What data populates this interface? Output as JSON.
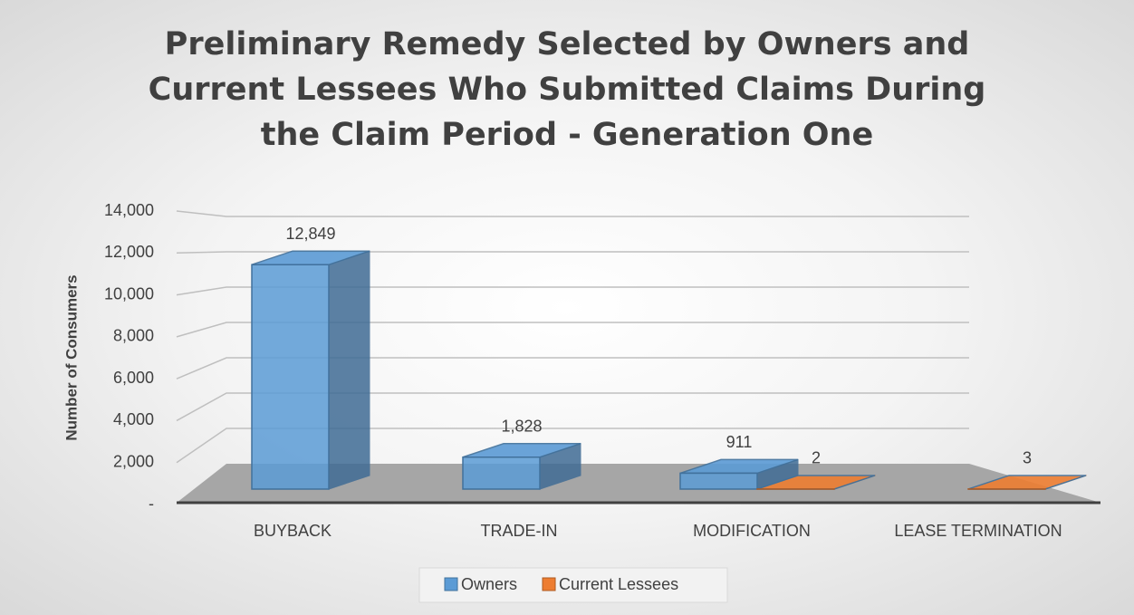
{
  "chart_data": {
    "type": "bar3d",
    "title": "Preliminary Remedy Selected by Owners and Current Lessees Who Submitted Claims During the Claim Period - Generation One",
    "y_label": "Number of Consumers",
    "categories": [
      "BUYBACK",
      "TRADE-IN",
      "MODIFICATION",
      "LEASE TERMINATION"
    ],
    "series": [
      {
        "name": "Owners",
        "color": "#5b9bd5",
        "values": [
          12849,
          1828,
          911,
          null
        ],
        "value_labels": [
          "12,849",
          "1,828",
          "911",
          null
        ]
      },
      {
        "name": "Current Lessees",
        "color": "#ed7d31",
        "values": [
          null,
          null,
          2,
          3
        ],
        "value_labels": [
          null,
          null,
          "2",
          "3"
        ]
      }
    ],
    "ylim": [
      0,
      14000
    ],
    "yticks": [
      {
        "value": 0,
        "label": "-"
      },
      {
        "value": 2000,
        "label": "2,000"
      },
      {
        "value": 4000,
        "label": "4,000"
      },
      {
        "value": 6000,
        "label": "6,000"
      },
      {
        "value": 8000,
        "label": "8,000"
      },
      {
        "value": 10000,
        "label": "10,000"
      },
      {
        "value": 12000,
        "label": "12,000"
      },
      {
        "value": 14000,
        "label": "14,000"
      }
    ],
    "grid": true,
    "legend": "bottom"
  }
}
